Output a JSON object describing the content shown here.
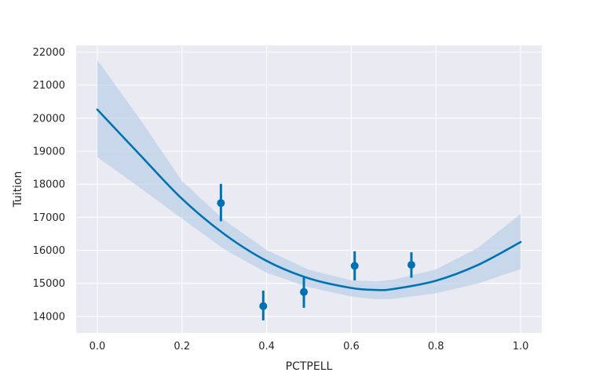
{
  "chart_data": {
    "type": "scatter",
    "title": "",
    "xlabel": "PCTPELL",
    "ylabel": "Tuition",
    "xlim": [
      -0.05,
      1.05
    ],
    "ylim": [
      13500,
      22200
    ],
    "x_ticks": [
      0.0,
      0.2,
      0.4,
      0.6,
      0.8,
      1.0
    ],
    "x_tick_labels": [
      "0.0",
      "0.2",
      "0.4",
      "0.6",
      "0.8",
      "1.0"
    ],
    "y_ticks": [
      14000,
      15000,
      16000,
      17000,
      18000,
      19000,
      20000,
      21000,
      22000
    ],
    "y_tick_labels": [
      "14000",
      "15000",
      "16000",
      "17000",
      "18000",
      "19000",
      "20000",
      "21000",
      "22000"
    ],
    "grid": true,
    "background": "#eaeaf2",
    "color": "#0072b2",
    "band_color": "#b3cce4",
    "points": [
      {
        "x": 0.292,
        "y": 17430,
        "low": 16880,
        "high": 18010
      },
      {
        "x": 0.392,
        "y": 14310,
        "low": 13880,
        "high": 14780
      },
      {
        "x": 0.488,
        "y": 14740,
        "low": 14260,
        "high": 15210
      },
      {
        "x": 0.608,
        "y": 15530,
        "low": 15090,
        "high": 15970
      },
      {
        "x": 0.742,
        "y": 15560,
        "low": 15170,
        "high": 15940
      }
    ],
    "fit": {
      "order": 2,
      "x": [
        0.0,
        0.1,
        0.2,
        0.3,
        0.4,
        0.5,
        0.6,
        0.66,
        0.7,
        0.8,
        0.9,
        1.0
      ],
      "y": [
        20260,
        18900,
        17560,
        16490,
        15680,
        15150,
        14860,
        14800,
        14830,
        15080,
        15560,
        16250
      ],
      "lower": [
        18820,
        17900,
        16960,
        16030,
        15320,
        14880,
        14600,
        14520,
        14530,
        14700,
        15000,
        15430
      ],
      "upper": [
        21760,
        19980,
        18100,
        16910,
        16010,
        15410,
        15090,
        15060,
        15110,
        15420,
        16080,
        17100
      ]
    }
  }
}
